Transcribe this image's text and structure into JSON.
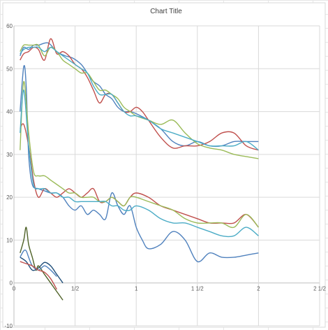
{
  "chart_data": {
    "type": "line",
    "title": "Chart Title",
    "xlabel": "",
    "ylabel": "",
    "xlim": [
      0,
      2.5
    ],
    "ylim": [
      -10,
      60
    ],
    "grid": true,
    "legend": "none",
    "x_ticks": [
      {
        "value": 0,
        "label": "0"
      },
      {
        "value": 0.5,
        "label": "1/2"
      },
      {
        "value": 1,
        "label": "1"
      },
      {
        "value": 1.5,
        "label": "1  1/2"
      },
      {
        "value": 2,
        "label": "2"
      },
      {
        "value": 2.5,
        "label": "2  1/2"
      }
    ],
    "y_ticks": [
      -10,
      0,
      10,
      20,
      30,
      40,
      50,
      60
    ],
    "colors": [
      "#4f81bd",
      "#c0504d",
      "#9bbb59",
      "#4bacc6",
      "#1f4e79",
      "#4f6228"
    ],
    "series": [
      {
        "color": "#4f81bd",
        "x": [
          0.05,
          0.08,
          0.12,
          0.16,
          0.2,
          0.28,
          0.35,
          0.42,
          0.48,
          0.55,
          0.6,
          0.65,
          0.7,
          0.75,
          0.8,
          0.85,
          0.9,
          0.95,
          1.0,
          1.1,
          1.2,
          1.3,
          1.4,
          1.5,
          1.6,
          1.7,
          1.8,
          1.9,
          2.0
        ],
        "y": [
          53,
          55,
          54.5,
          55.5,
          55.5,
          56,
          54,
          53,
          52.5,
          51,
          49,
          47,
          46,
          44,
          43,
          41,
          40,
          40,
          39.5,
          38,
          36,
          33,
          32,
          33,
          32,
          32,
          33,
          33,
          33
        ]
      },
      {
        "color": "#c0504d",
        "x": [
          0.05,
          0.08,
          0.12,
          0.16,
          0.2,
          0.25,
          0.3,
          0.35,
          0.4,
          0.45,
          0.5,
          0.55,
          0.6,
          0.65,
          0.7,
          0.75,
          0.8,
          0.85,
          0.9,
          0.95,
          1.0,
          1.05,
          1.1,
          1.2,
          1.3,
          1.4,
          1.5,
          1.6,
          1.7,
          1.8,
          1.9,
          2.0
        ],
        "y": [
          52,
          53.5,
          54,
          55,
          54.5,
          52,
          57,
          53.5,
          54,
          53,
          51,
          50,
          48,
          45,
          42,
          44,
          44,
          42,
          40,
          40,
          41,
          40,
          38,
          34,
          31.5,
          32,
          32,
          33,
          35,
          35,
          32,
          31
        ]
      },
      {
        "color": "#9bbb59",
        "x": [
          0.05,
          0.08,
          0.12,
          0.16,
          0.2,
          0.25,
          0.3,
          0.35,
          0.4,
          0.45,
          0.5,
          0.55,
          0.6,
          0.65,
          0.7,
          0.75,
          0.8,
          0.85,
          0.9,
          0.95,
          1.0,
          1.1,
          1.2,
          1.3,
          1.4,
          1.5,
          1.6,
          1.7,
          1.8,
          1.9,
          2.0
        ],
        "y": [
          54,
          55.5,
          55.5,
          55.5,
          55.5,
          53,
          55,
          54,
          52,
          51,
          50,
          49,
          49,
          47,
          45,
          45,
          44,
          43,
          41,
          40,
          39,
          38,
          37,
          38,
          35,
          32.5,
          31.5,
          31,
          30,
          29.5,
          29
        ]
      },
      {
        "color": "#4bacc6",
        "x": [
          0.05,
          0.08,
          0.12,
          0.16,
          0.2,
          0.25,
          0.3,
          0.35,
          0.4,
          0.45,
          0.5,
          0.55,
          0.6,
          0.65,
          0.7,
          0.75,
          0.8,
          0.85,
          0.9,
          0.95,
          1.0,
          1.1,
          1.2,
          1.3,
          1.4,
          1.5,
          1.6,
          1.7,
          1.8,
          1.9,
          2.0
        ],
        "y": [
          53.5,
          54.5,
          55,
          55,
          55,
          54,
          55,
          54,
          53,
          52,
          51,
          50,
          49,
          46,
          44,
          44,
          44,
          42,
          40,
          39,
          39,
          38,
          36,
          35,
          34,
          33,
          32,
          32,
          32,
          33,
          31
        ]
      },
      {
        "color": "#4f81bd",
        "x": [
          0.05,
          0.08,
          0.1,
          0.12,
          0.15,
          0.2,
          0.25,
          0.3,
          0.35,
          0.4,
          0.45,
          0.5,
          0.55,
          0.6,
          0.65,
          0.7,
          0.75,
          0.8,
          0.85,
          0.9,
          0.95,
          1.0,
          1.05,
          1.1,
          1.2,
          1.3,
          1.4,
          1.5,
          1.6,
          1.7,
          1.8,
          1.9,
          2.0
        ],
        "y": [
          40,
          50.5,
          46,
          30,
          23,
          22,
          21.5,
          21,
          21,
          20,
          18,
          17,
          18,
          16,
          17,
          16,
          15,
          21,
          18,
          16,
          18,
          13,
          10,
          8,
          9,
          12,
          10,
          5,
          7,
          6,
          6,
          6.5,
          7
        ]
      },
      {
        "color": "#c0504d",
        "x": [
          0.05,
          0.08,
          0.12,
          0.16,
          0.2,
          0.25,
          0.3,
          0.35,
          0.4,
          0.45,
          0.5,
          0.55,
          0.6,
          0.65,
          0.7,
          0.75,
          0.8,
          0.85,
          0.9,
          0.95,
          1.0,
          1.1,
          1.2,
          1.3,
          1.4,
          1.5,
          1.6,
          1.7,
          1.8,
          1.9,
          2.0
        ],
        "y": [
          36,
          37,
          32,
          24,
          20,
          22,
          21,
          20,
          21,
          22,
          21,
          20,
          21,
          22,
          19,
          19,
          20,
          19,
          18,
          20,
          21,
          20,
          18,
          17,
          16,
          15,
          14,
          14,
          14,
          16,
          13
        ]
      },
      {
        "color": "#9bbb59",
        "x": [
          0.05,
          0.08,
          0.12,
          0.16,
          0.2,
          0.25,
          0.3,
          0.35,
          0.4,
          0.45,
          0.5,
          0.55,
          0.6,
          0.65,
          0.7,
          0.75,
          0.8,
          0.85,
          0.9,
          0.95,
          1.0,
          1.1,
          1.2,
          1.3,
          1.4,
          1.5,
          1.6,
          1.7,
          1.8,
          1.9,
          2.0
        ],
        "y": [
          31,
          47,
          35,
          26,
          25,
          25,
          24,
          23,
          22,
          21,
          21,
          20,
          20,
          20,
          19,
          19,
          20,
          19,
          18,
          20,
          20,
          19,
          18,
          17,
          15,
          14,
          14,
          14,
          13,
          16,
          13
        ]
      },
      {
        "color": "#4bacc6",
        "x": [
          0.05,
          0.08,
          0.12,
          0.16,
          0.2,
          0.25,
          0.3,
          0.35,
          0.4,
          0.45,
          0.5,
          0.55,
          0.6,
          0.65,
          0.7,
          0.75,
          0.8,
          0.85,
          0.9,
          0.95,
          1.0,
          1.1,
          1.2,
          1.3,
          1.4,
          1.5,
          1.6,
          1.7,
          1.8,
          1.9,
          2.0
        ],
        "y": [
          35,
          45,
          32,
          23,
          22,
          22,
          21,
          21,
          20,
          20,
          19,
          19,
          19,
          19,
          19,
          19,
          18,
          18,
          17,
          17,
          18,
          17,
          15,
          14,
          14,
          13,
          12,
          11,
          11,
          13,
          11
        ]
      },
      {
        "color": "#1f4e79",
        "x": [
          0.05,
          0.1,
          0.15,
          0.2,
          0.25,
          0.3,
          0.35,
          0.4
        ],
        "y": [
          6,
          5,
          3,
          3.5,
          4.8,
          4,
          2,
          0
        ]
      },
      {
        "color": "#4f6228",
        "x": [
          0.05,
          0.08,
          0.1,
          0.12,
          0.15,
          0.18,
          0.2,
          0.25,
          0.3,
          0.35,
          0.4
        ],
        "y": [
          7,
          10,
          13,
          9,
          6,
          3,
          4,
          2,
          0,
          -2,
          -4
        ]
      },
      {
        "color": "#4f81bd",
        "x": [
          0.05,
          0.08,
          0.1,
          0.12,
          0.15,
          0.2,
          0.25,
          0.3,
          0.35
        ],
        "y": [
          6,
          7.5,
          7.5,
          6,
          4,
          3,
          4,
          3,
          1.5
        ]
      },
      {
        "color": "#c0504d",
        "x": [
          0.05,
          0.1,
          0.15,
          0.2,
          0.25,
          0.3,
          0.35
        ],
        "y": [
          5,
          4.5,
          4,
          3,
          2.5,
          1,
          -1.5
        ]
      }
    ]
  }
}
